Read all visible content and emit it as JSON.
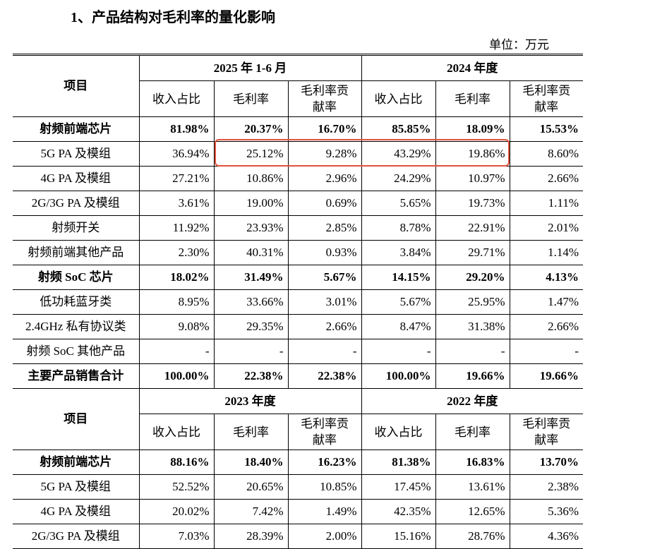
{
  "title": "1、产品结构对毛利率的量化影响",
  "unit": "单位：万元",
  "sections": [
    {
      "item_header": "项目",
      "periods": [
        {
          "label": "2025 年 1-6 月",
          "columns": [
            "收入占比",
            "毛利率",
            "毛利率贡献率"
          ]
        },
        {
          "label": "2024 年度",
          "columns": [
            "收入占比",
            "毛利率",
            "毛利率贡献率"
          ]
        }
      ],
      "rows": [
        {
          "label": "射频前端芯片",
          "bold": true,
          "cells": [
            "81.98%",
            "20.37%",
            "16.70%",
            "85.85%",
            "18.09%",
            "15.53%"
          ]
        },
        {
          "label": "5G PA 及模组",
          "bold": false,
          "cells": [
            "36.94%",
            "25.12%",
            "9.28%",
            "43.29%",
            "19.86%",
            "8.60%"
          ]
        },
        {
          "label": "4G PA 及模组",
          "bold": false,
          "cells": [
            "27.21%",
            "10.86%",
            "2.96%",
            "24.29%",
            "10.97%",
            "2.66%"
          ]
        },
        {
          "label": "2G/3G PA 及模组",
          "bold": false,
          "cells": [
            "3.61%",
            "19.00%",
            "0.69%",
            "5.65%",
            "19.73%",
            "1.11%"
          ]
        },
        {
          "label": "射频开关",
          "bold": false,
          "cells": [
            "11.92%",
            "23.93%",
            "2.85%",
            "8.78%",
            "22.91%",
            "2.01%"
          ]
        },
        {
          "label": "射频前端其他产品",
          "bold": false,
          "cells": [
            "2.30%",
            "40.31%",
            "0.93%",
            "3.84%",
            "29.71%",
            "1.14%"
          ]
        },
        {
          "label": "射频 SoC 芯片",
          "bold": true,
          "cells": [
            "18.02%",
            "31.49%",
            "5.67%",
            "14.15%",
            "29.20%",
            "4.13%"
          ]
        },
        {
          "label": "低功耗蓝牙类",
          "bold": false,
          "cells": [
            "8.95%",
            "33.66%",
            "3.01%",
            "5.67%",
            "25.95%",
            "1.47%"
          ]
        },
        {
          "label": "2.4GHz 私有协议类",
          "bold": false,
          "cells": [
            "9.08%",
            "29.35%",
            "2.66%",
            "8.47%",
            "31.38%",
            "2.66%"
          ]
        },
        {
          "label": "射频 SoC 其他产品",
          "bold": false,
          "cells": [
            "-",
            "-",
            "-",
            "-",
            "-",
            "-"
          ]
        },
        {
          "label": "主要产品销售合计",
          "bold": true,
          "cells": [
            "100.00%",
            "22.38%",
            "22.38%",
            "100.00%",
            "19.66%",
            "19.66%"
          ]
        }
      ]
    },
    {
      "item_header": "项目",
      "periods": [
        {
          "label": "2023 年度",
          "columns": [
            "收入占比",
            "毛利率",
            "毛利率贡献率"
          ]
        },
        {
          "label": "2022 年度",
          "columns": [
            "收入占比",
            "毛利率",
            "毛利率贡献率"
          ]
        }
      ],
      "rows": [
        {
          "label": "射频前端芯片",
          "bold": true,
          "cells": [
            "88.16%",
            "18.40%",
            "16.23%",
            "81.38%",
            "16.83%",
            "13.70%"
          ]
        },
        {
          "label": "5G PA 及模组",
          "bold": false,
          "cells": [
            "52.52%",
            "20.65%",
            "10.85%",
            "17.45%",
            "13.61%",
            "2.38%"
          ]
        },
        {
          "label": "4G PA 及模组",
          "bold": false,
          "cells": [
            "20.02%",
            "7.42%",
            "1.49%",
            "42.35%",
            "12.65%",
            "5.36%"
          ]
        },
        {
          "label": "2G/3G PA 及模组",
          "bold": false,
          "cells": [
            "7.03%",
            "28.39%",
            "2.00%",
            "15.16%",
            "28.76%",
            "4.36%"
          ]
        }
      ]
    }
  ]
}
